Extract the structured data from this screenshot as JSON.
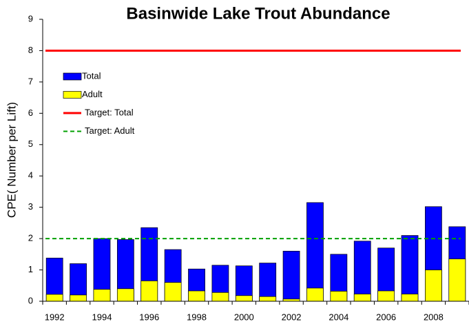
{
  "chart_data": {
    "type": "bar",
    "title": "Basinwide Lake Trout Abundance",
    "y_label": "CPE( Number per Lift)",
    "categories": [
      "1992",
      null,
      "1994",
      null,
      "1996",
      null,
      "1998",
      null,
      "2000",
      null,
      "2002",
      null,
      "2004",
      null,
      "2006",
      null,
      "2008",
      null
    ],
    "series": [
      {
        "name": "Total",
        "color": "#0000ff",
        "values": [
          1.38,
          1.2,
          2.0,
          1.97,
          2.35,
          1.65,
          1.03,
          1.15,
          1.13,
          1.22,
          1.6,
          3.15,
          1.5,
          1.92,
          1.7,
          2.1,
          3.02,
          2.38
        ]
      },
      {
        "name": "Adult",
        "color": "#ffff00",
        "values": [
          0.22,
          0.2,
          0.38,
          0.4,
          0.65,
          0.6,
          0.33,
          0.28,
          0.18,
          0.15,
          0.07,
          0.42,
          0.32,
          0.23,
          0.33,
          0.23,
          1.0,
          1.35
        ]
      }
    ],
    "reference_lines": [
      {
        "name": "Target: Total",
        "color": "#ff0000",
        "value": 8,
        "dashed": false
      },
      {
        "name": "Target: Adult",
        "color": "#00a000",
        "value": 2,
        "dashed": true
      }
    ],
    "ylim": [
      0,
      9
    ],
    "yticks": [
      0,
      1,
      2,
      3,
      4,
      5,
      6,
      7,
      8,
      9
    ],
    "grid": false,
    "overlap": true,
    "legend": "upper left"
  }
}
